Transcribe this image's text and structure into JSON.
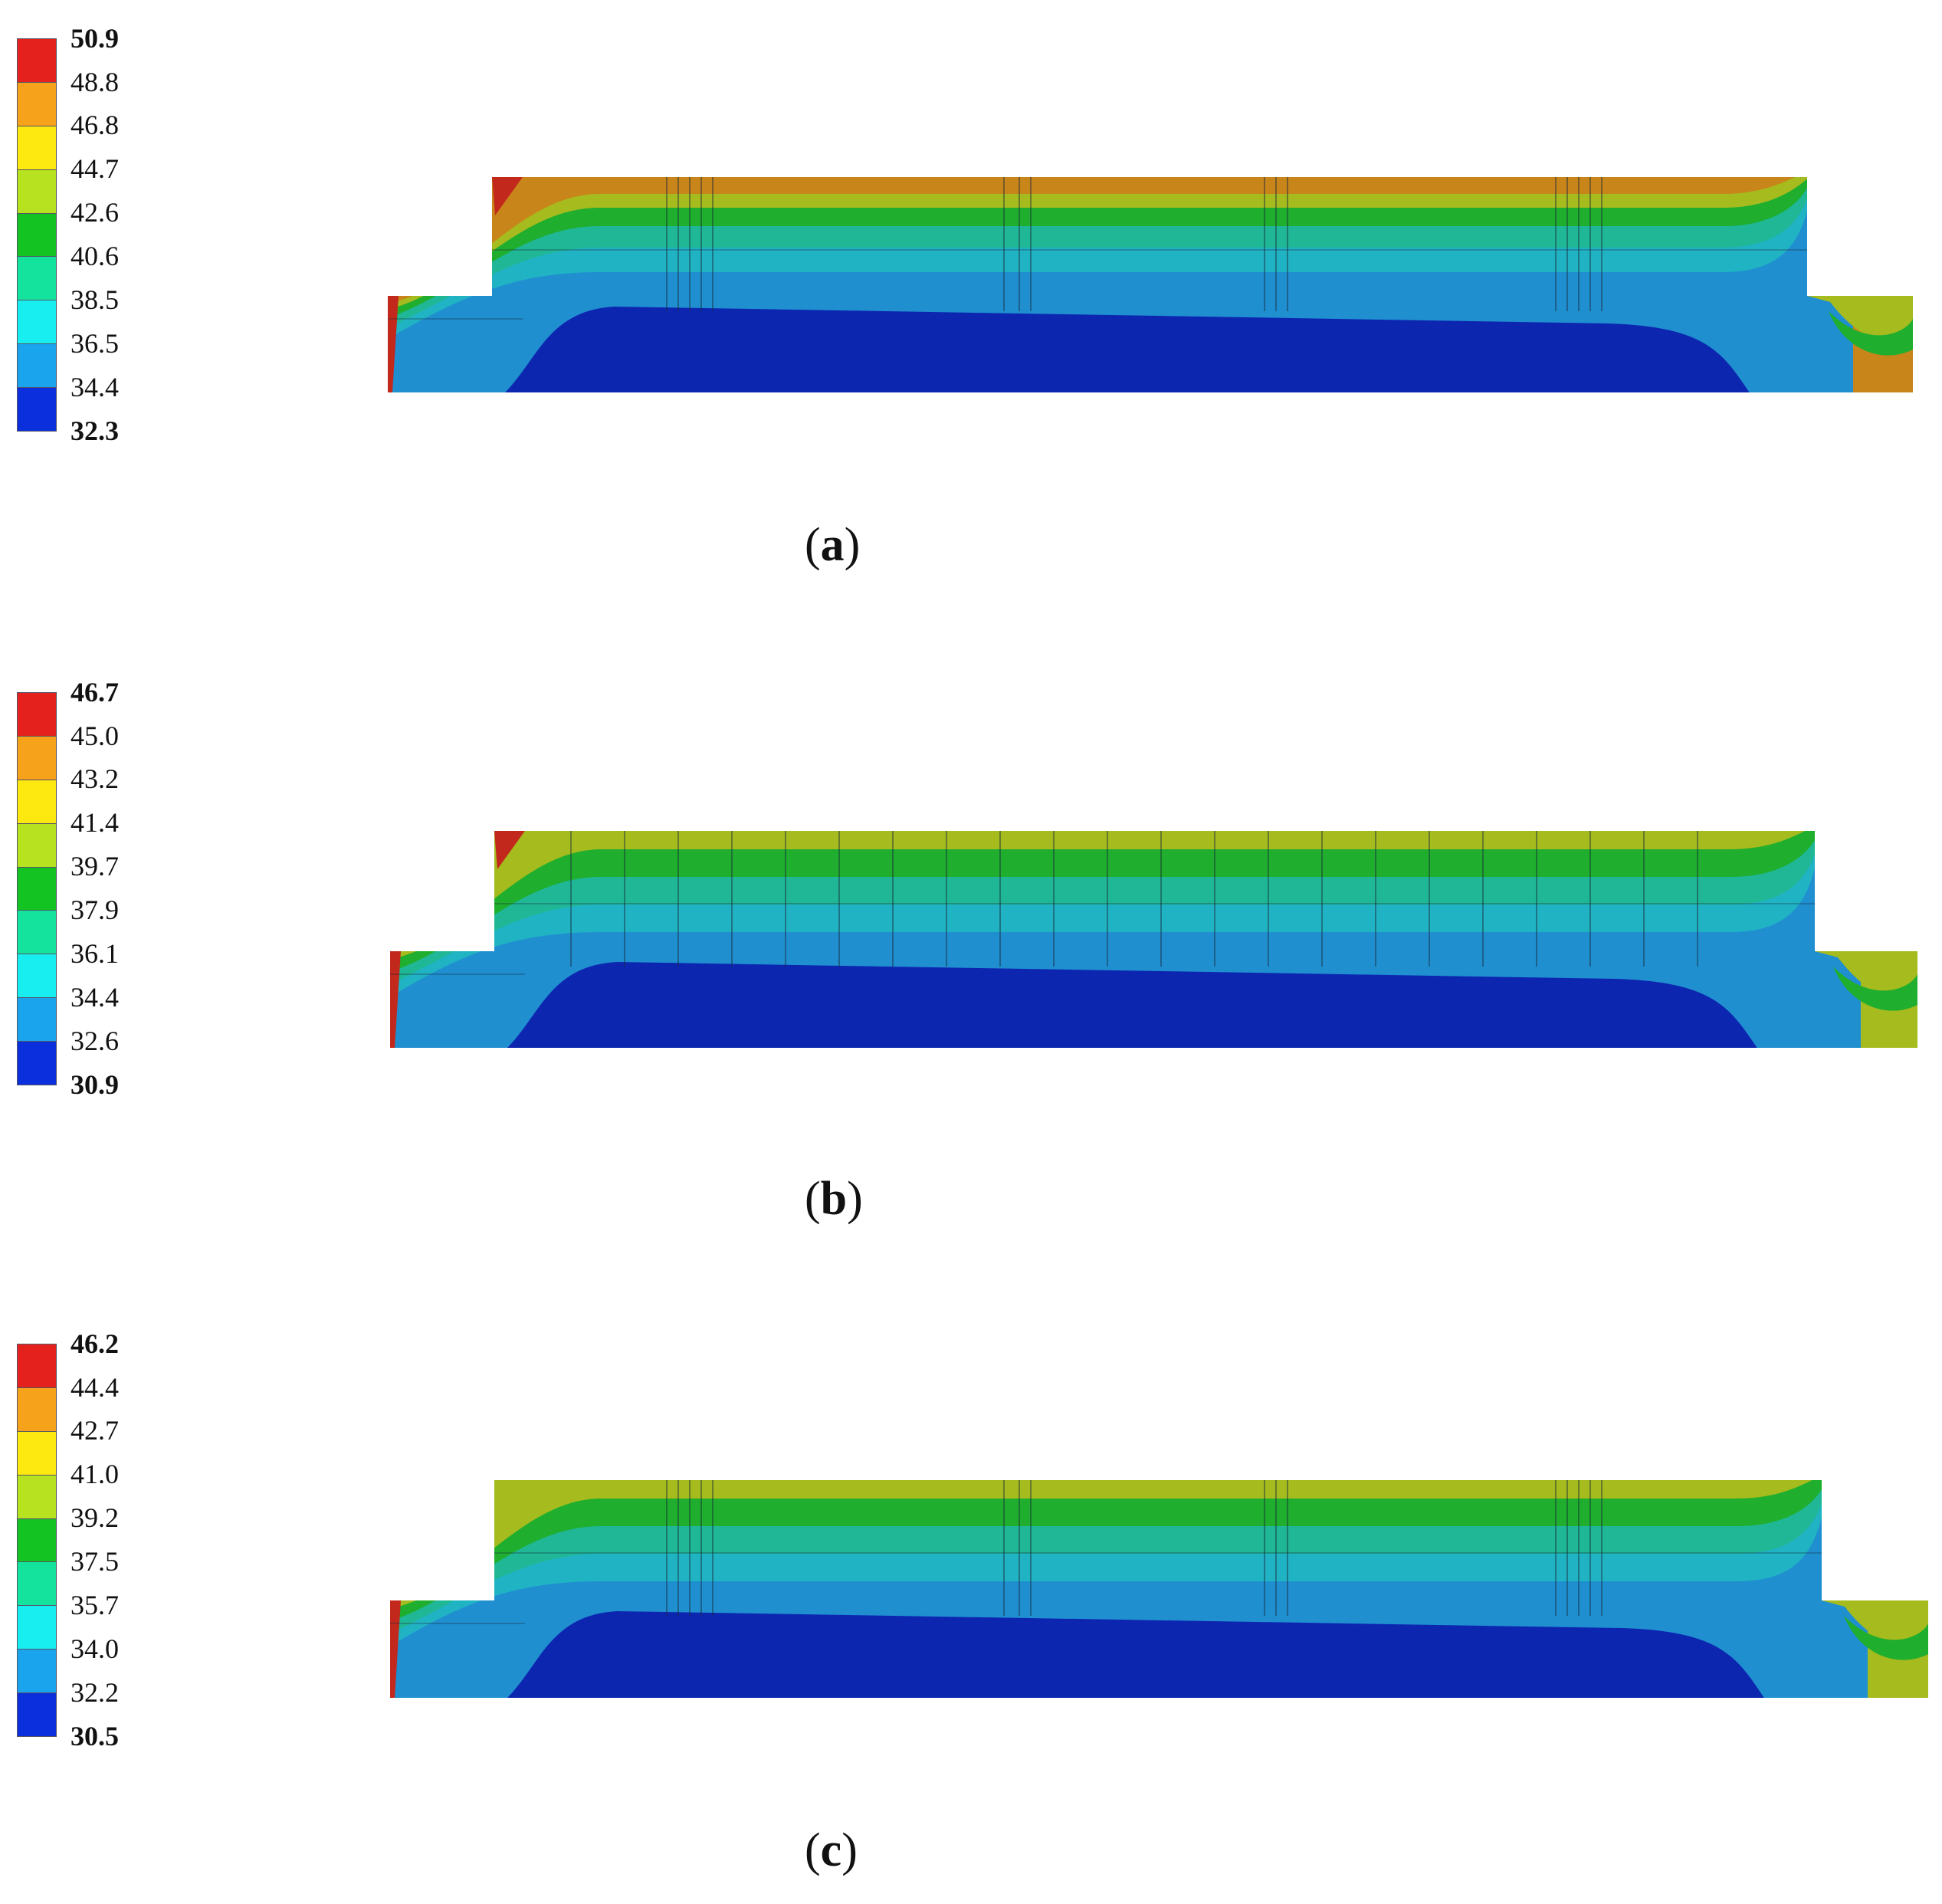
{
  "panels": [
    {
      "id": "a",
      "caption_open": "(",
      "caption_letter": "a",
      "caption_close": ")",
      "legend_values": [
        "50.9",
        "48.8",
        "46.8",
        "44.7",
        "42.6",
        "40.6",
        "38.5",
        "36.5",
        "34.4",
        "32.3"
      ]
    },
    {
      "id": "b",
      "caption_open": "(",
      "caption_letter": "b",
      "caption_close": ")",
      "legend_values": [
        "46.7",
        "45.0",
        "43.2",
        "41.4",
        "39.7",
        "37.9",
        "36.1",
        "34.4",
        "32.6",
        "30.9"
      ]
    },
    {
      "id": "c",
      "caption_open": "(",
      "caption_letter": "c",
      "caption_close": ")",
      "legend_values": [
        "46.2",
        "44.4",
        "42.7",
        "41.0",
        "39.2",
        "37.5",
        "35.7",
        "34.0",
        "32.2",
        "30.5"
      ]
    }
  ],
  "colormap": [
    "#e5211d",
    "#f7a21b",
    "#fde910",
    "#b6e21f",
    "#12c322",
    "#14e39d",
    "#18eef0",
    "#1aa4ee",
    "#0b2fdd"
  ],
  "field_colors": {
    "hot": "#c2281c",
    "orange": "#c8851a",
    "yellow_green": "#a5bb1e",
    "green": "#1fae2e",
    "teal": "#1fb796",
    "cyan": "#20b3c4",
    "light_blue": "#1f8fd0",
    "blue_core": "#0d26b0"
  }
}
